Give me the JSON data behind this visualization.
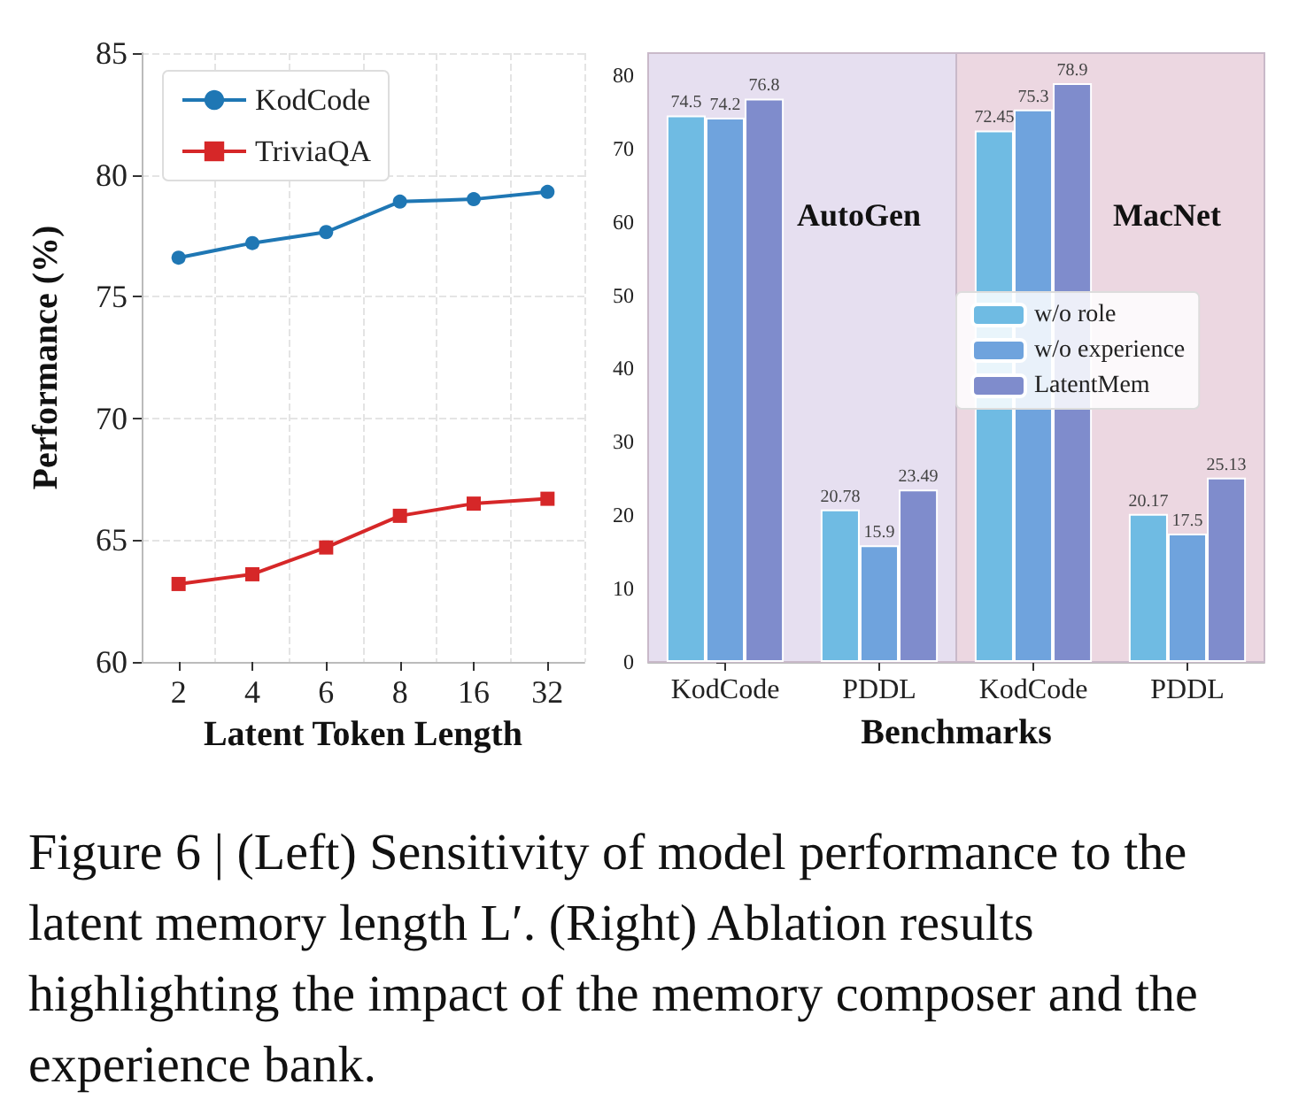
{
  "chart_data": [
    {
      "type": "line",
      "xlabel": "Latent Token Length",
      "ylabel": "Performance (%)",
      "categories": [
        "2",
        "4",
        "6",
        "8",
        "16",
        "32"
      ],
      "series": [
        {
          "name": "KodCode",
          "color": "#1f77b4",
          "marker": "circle",
          "values": [
            76.6,
            77.2,
            77.65,
            78.9,
            79.0,
            79.3
          ]
        },
        {
          "name": "TriviaQA",
          "color": "#d62728",
          "marker": "square",
          "values": [
            63.2,
            63.6,
            64.7,
            66.0,
            66.5,
            66.7
          ]
        }
      ],
      "ylim": [
        60,
        85
      ],
      "yticks": [
        60,
        65,
        70,
        75,
        80,
        85
      ],
      "grid": true,
      "legend": "top left",
      "line_style": "solid",
      "annotations": [
        "Figure 6 | (Left) Sensitivity of model performance to the latent memory length L′. (Right) Ablation results highlighting the impact of the memory composer and the experience bank."
      ]
    },
    {
      "type": "bar",
      "categories": [
        "KodCode",
        "PDDL"
      ],
      "series": [
        {
          "color": "#6fbbe3",
          "values": [
            74.5,
            20.78
          ]
        },
        {
          "color": "#6fa3dd",
          "values": [
            74.2,
            15.9
          ]
        },
        {
          "color": "#7f8ccc",
          "values": [
            76.8,
            23.49
          ]
        }
      ],
      "ylim": [
        0,
        83
      ],
      "yticks": [
        0,
        10,
        20,
        30,
        40,
        50,
        60,
        70,
        80
      ],
      "data_labels": true,
      "bands": [
        {
          "axis": "x",
          "from": "KodCode",
          "to": "PDDL",
          "label": "AutoGen",
          "color": "#e6dff0"
        }
      ]
    },
    {
      "type": "bar",
      "xlabel": "Benchmarks",
      "categories": [
        "KodCode",
        "PDDL"
      ],
      "series": [
        {
          "name": "w/o role",
          "color": "#6fbbe3",
          "values": [
            72.45,
            20.17
          ]
        },
        {
          "name": "w/o experience",
          "color": "#6fa3dd",
          "values": [
            75.3,
            17.5
          ]
        },
        {
          "name": "LatentMem",
          "color": "#7f8ccc",
          "values": [
            78.9,
            25.13
          ]
        }
      ],
      "ylim": [
        0,
        83
      ],
      "yticks": [
        0,
        10,
        20,
        30,
        40,
        50,
        60,
        70,
        80
      ],
      "tick_labels": "x",
      "legend": "left",
      "data_labels": true,
      "bands": [
        {
          "axis": "x",
          "from": "KodCode",
          "to": "PDDL",
          "label": "MacNet",
          "color": "#ecd7e1"
        }
      ]
    }
  ]
}
